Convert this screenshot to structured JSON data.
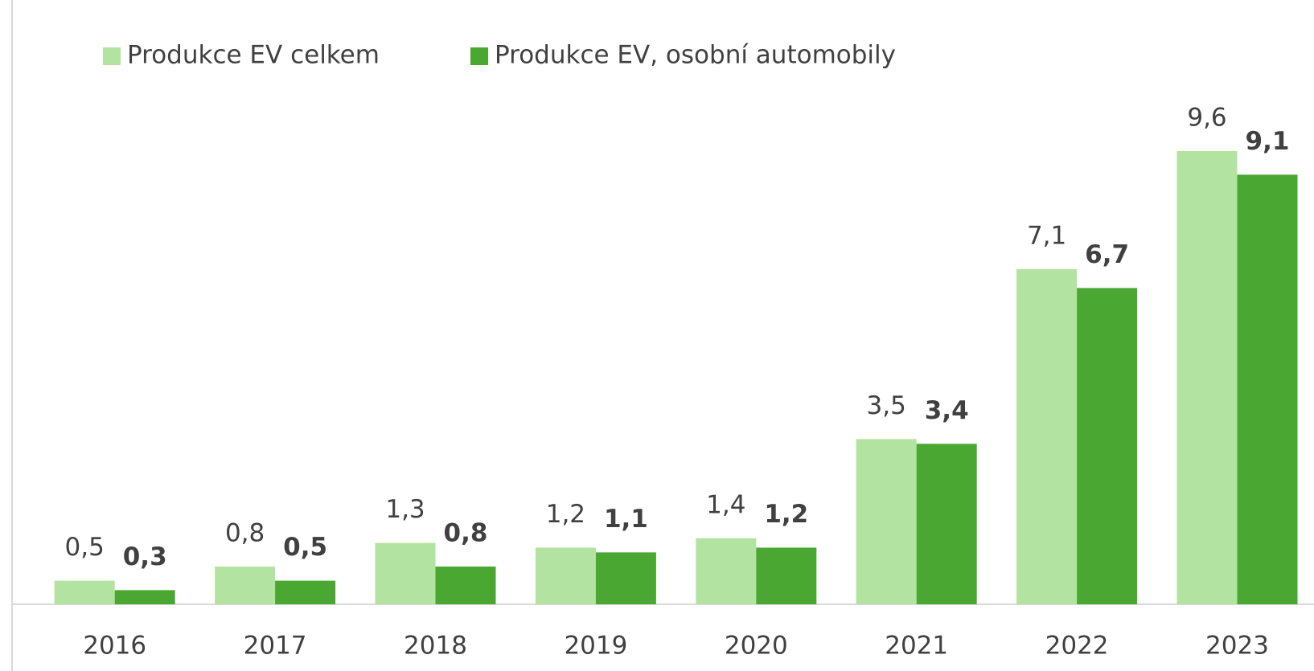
{
  "chart_data": {
    "type": "bar",
    "categories": [
      "2016",
      "2017",
      "2018",
      "2019",
      "2020",
      "2021",
      "2022",
      "2023"
    ],
    "series": [
      {
        "name": "Produkce EV celkem",
        "color": "#b3e3a0",
        "values": [
          0.5,
          0.8,
          1.3,
          1.2,
          1.4,
          3.5,
          7.1,
          9.6
        ],
        "value_labels": [
          "0,5",
          "0,8",
          "1,3",
          "1,2",
          "1,4",
          "3,5",
          "7,1",
          "9,6"
        ]
      },
      {
        "name": "Produkce EV, osobní automobily",
        "color": "#4aa832",
        "values": [
          0.3,
          0.5,
          0.8,
          1.1,
          1.2,
          3.4,
          6.7,
          9.1
        ],
        "value_labels": [
          "0,3",
          "0,5",
          "0,8",
          "1,1",
          "1,2",
          "3,4",
          "6,7",
          "9,1"
        ]
      }
    ]
  }
}
